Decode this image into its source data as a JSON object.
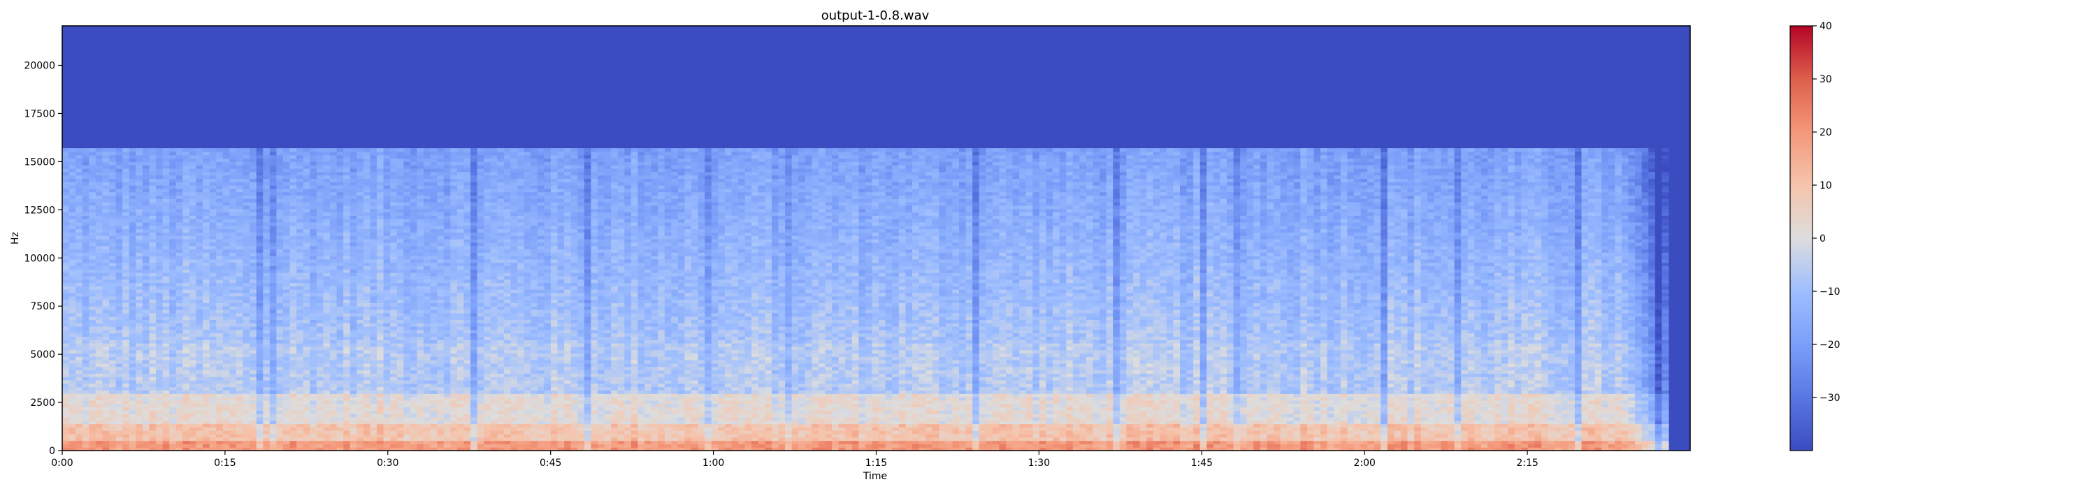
{
  "chart_data": {
    "type": "heatmap",
    "title": "output-1-0.8.wav",
    "xlabel": "Time",
    "ylabel": "Hz",
    "x_ticks": [
      "0:00",
      "0:15",
      "0:30",
      "0:45",
      "1:00",
      "1:15",
      "1:30",
      "1:45",
      "2:00",
      "2:15"
    ],
    "x_tick_seconds": [
      0,
      15,
      30,
      45,
      60,
      75,
      90,
      105,
      120,
      135
    ],
    "xlim_seconds": [
      0,
      150
    ],
    "y_ticks": [
      "0",
      "2500",
      "5000",
      "7500",
      "10000",
      "12500",
      "15000",
      "17500",
      "20000"
    ],
    "y_tick_values": [
      0,
      2500,
      5000,
      7500,
      10000,
      12500,
      15000,
      17500,
      20000
    ],
    "ylim": [
      0,
      22050
    ],
    "content_cutoff_hz": 15700,
    "audio_end_seconds": 148,
    "colorbar": {
      "colormap": "coolwarm",
      "range": [
        -40,
        40
      ],
      "ticks": [
        "40",
        "30",
        "20",
        "10",
        "0",
        "−10",
        "−20",
        "−30"
      ],
      "tick_values": [
        40,
        30,
        20,
        10,
        0,
        -10,
        -20,
        -30
      ],
      "low_color": "#3a4cc0",
      "mid_color": "#dddddd",
      "high_color": "#b40426"
    },
    "grid": false
  }
}
